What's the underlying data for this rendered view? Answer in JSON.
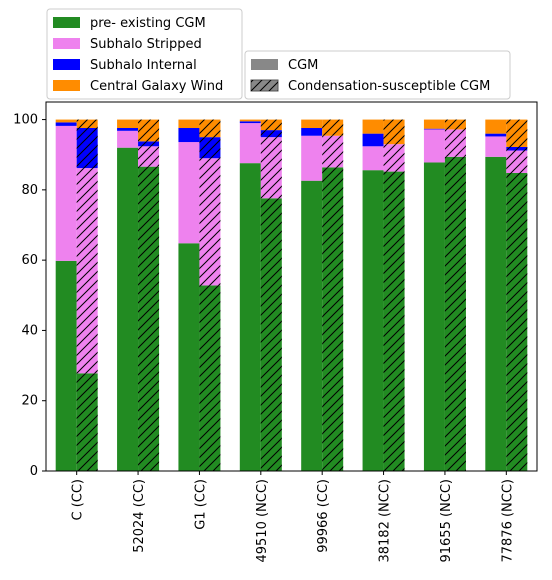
{
  "chart_data": {
    "type": "bar",
    "stacked": true,
    "categories": [
      "C (CC)",
      "52024 (CC)",
      "G1 (CC)",
      "49510 (NCC)",
      "99966 (CC)",
      "38182 (NCC)",
      "91655 (NCC)",
      "77876 (NCC)"
    ],
    "ylim": [
      0,
      105
    ],
    "yticks": [
      0,
      20,
      40,
      60,
      80,
      100
    ],
    "groups": [
      {
        "name": "CGM",
        "hatch": false,
        "legend_color": "#888888"
      },
      {
        "name": "Condensation-susceptible CGM",
        "hatch": true,
        "legend_color": "#888888"
      }
    ],
    "series": [
      {
        "name": "pre- existing CGM",
        "color": "#228B22",
        "cgm": [
          59.8,
          92.0,
          64.8,
          87.6,
          82.6,
          85.6,
          87.8,
          89.4
        ],
        "ccgm": [
          27.8,
          86.6,
          52.8,
          77.6,
          86.4,
          85.2,
          89.4,
          84.8
        ]
      },
      {
        "name": "Subhalo Stripped",
        "color": "#EE82EE",
        "cgm": [
          38.4,
          4.8,
          28.8,
          11.4,
          12.8,
          6.8,
          9.4,
          5.8
        ],
        "ccgm": [
          58.4,
          5.8,
          36.2,
          17.4,
          9.0,
          7.8,
          7.8,
          6.4
        ]
      },
      {
        "name": "Subhalo Internal",
        "color": "#0000FF",
        "cgm": [
          1.0,
          0.8,
          4.0,
          0.5,
          2.2,
          3.6,
          0.2,
          0.8
        ],
        "ccgm": [
          11.4,
          1.4,
          6.0,
          2.0,
          0.0,
          0.0,
          0.0,
          1.0
        ]
      },
      {
        "name": "Central Galaxy Wind",
        "color": "#FF8C00",
        "cgm": [
          0.8,
          2.4,
          2.4,
          0.5,
          2.4,
          4.0,
          2.6,
          4.0
        ],
        "ccgm": [
          2.4,
          6.2,
          5.0,
          3.0,
          4.6,
          7.0,
          2.8,
          7.8
        ]
      }
    ]
  }
}
